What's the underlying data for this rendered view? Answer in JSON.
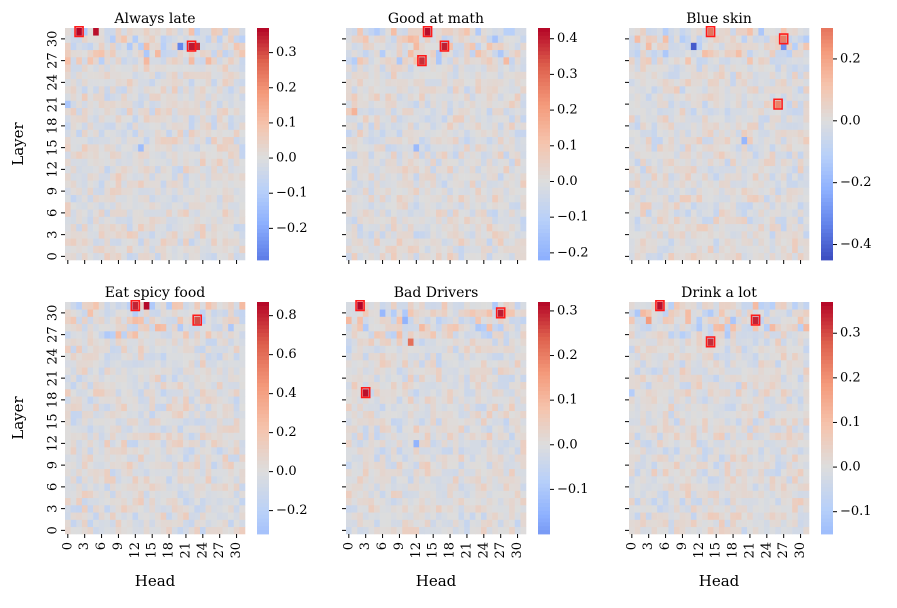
{
  "figure": {
    "type": "heatmap-grid",
    "x_label": "Head",
    "y_label": "Layer",
    "x_ticks": [
      "0",
      "3",
      "6",
      "9",
      "12",
      "15",
      "18",
      "21",
      "24",
      "27",
      "30"
    ],
    "y_ticks": [
      "0",
      "3",
      "6",
      "9",
      "12",
      "15",
      "18",
      "21",
      "24",
      "27",
      "30"
    ]
  },
  "chart_data": [
    {
      "type": "heatmap",
      "title": "Always late",
      "xlabel": "",
      "ylabel": "Layer",
      "grid": [
        32,
        32
      ],
      "vmin": -0.29,
      "vmax": 0.37,
      "colorbar_ticks": [
        "0.3",
        "0.2",
        "0.1",
        "0.0",
        "−0.1",
        "−0.2"
      ],
      "colorbar_values": [
        0.3,
        0.2,
        0.1,
        0.0,
        -0.1,
        -0.2
      ],
      "hotspots": [
        {
          "head": 2,
          "layer": 31,
          "value": 0.37,
          "marked": true
        },
        {
          "head": 5,
          "layer": 31,
          "value": 0.36,
          "marked": false
        },
        {
          "head": 22,
          "layer": 29,
          "value": 0.35,
          "marked": true
        },
        {
          "head": 23,
          "layer": 29,
          "value": 0.33,
          "marked": false
        },
        {
          "head": 20,
          "layer": 29,
          "value": -0.27,
          "marked": false
        },
        {
          "head": 0,
          "layer": 21,
          "value": -0.12,
          "marked": false
        },
        {
          "head": 13,
          "layer": 15,
          "value": -0.15,
          "marked": false
        }
      ]
    },
    {
      "type": "heatmap",
      "title": "Good at math",
      "xlabel": "",
      "ylabel": "",
      "grid": [
        32,
        32
      ],
      "vmin": -0.22,
      "vmax": 0.43,
      "colorbar_ticks": [
        "0.4",
        "0.3",
        "0.2",
        "0.1",
        "0.0",
        "−0.1",
        "−0.2"
      ],
      "colorbar_values": [
        0.4,
        0.3,
        0.2,
        0.1,
        0.0,
        -0.1,
        -0.2
      ],
      "hotspots": [
        {
          "head": 14,
          "layer": 31,
          "value": 0.42,
          "marked": true
        },
        {
          "head": 17,
          "layer": 29,
          "value": 0.4,
          "marked": true
        },
        {
          "head": 13,
          "layer": 27,
          "value": 0.38,
          "marked": true
        },
        {
          "head": 26,
          "layer": 30,
          "value": -0.15,
          "marked": false
        },
        {
          "head": 12,
          "layer": 15,
          "value": -0.18,
          "marked": false
        },
        {
          "head": 1,
          "layer": 20,
          "value": 0.15,
          "marked": false
        }
      ]
    },
    {
      "type": "heatmap",
      "title": "Blue skin",
      "xlabel": "",
      "ylabel": "",
      "grid": [
        32,
        32
      ],
      "vmin": -0.45,
      "vmax": 0.3,
      "colorbar_ticks": [
        "0.2",
        "0.0",
        "−0.2",
        "−0.4"
      ],
      "colorbar_values": [
        0.2,
        0.0,
        -0.2,
        -0.4
      ],
      "hotspots": [
        {
          "head": 14,
          "layer": 31,
          "value": 0.3,
          "marked": true
        },
        {
          "head": 27,
          "layer": 30,
          "value": 0.28,
          "marked": true
        },
        {
          "head": 26,
          "layer": 21,
          "value": 0.27,
          "marked": true
        },
        {
          "head": 11,
          "layer": 29,
          "value": -0.42,
          "marked": false
        },
        {
          "head": 27,
          "layer": 29,
          "value": -0.3,
          "marked": false
        },
        {
          "head": 20,
          "layer": 16,
          "value": -0.2,
          "marked": false
        }
      ]
    },
    {
      "type": "heatmap",
      "title": "Eat spicy food",
      "xlabel": "Head",
      "ylabel": "Layer",
      "grid": [
        32,
        32
      ],
      "vmin": -0.32,
      "vmax": 0.87,
      "colorbar_ticks": [
        "0.8",
        "0.6",
        "0.4",
        "0.2",
        "0.0",
        "−0.2"
      ],
      "colorbar_values": [
        0.8,
        0.6,
        0.4,
        0.2,
        0.0,
        -0.2
      ],
      "hotspots": [
        {
          "head": 12,
          "layer": 31,
          "value": 0.8,
          "marked": true
        },
        {
          "head": 14,
          "layer": 31,
          "value": 0.86,
          "marked": false
        },
        {
          "head": 23,
          "layer": 29,
          "value": 0.7,
          "marked": true
        },
        {
          "head": 20,
          "layer": 14,
          "value": -0.15,
          "marked": false
        }
      ]
    },
    {
      "type": "heatmap",
      "title": "Bad Drivers",
      "xlabel": "Head",
      "ylabel": "",
      "grid": [
        32,
        32
      ],
      "vmin": -0.2,
      "vmax": 0.32,
      "colorbar_ticks": [
        "0.3",
        "0.2",
        "0.1",
        "0.0",
        "−0.1"
      ],
      "colorbar_values": [
        0.3,
        0.2,
        0.1,
        0.0,
        -0.1
      ],
      "hotspots": [
        {
          "head": 2,
          "layer": 31,
          "value": 0.32,
          "marked": true
        },
        {
          "head": 27,
          "layer": 30,
          "value": 0.3,
          "marked": true
        },
        {
          "head": 3,
          "layer": 19,
          "value": 0.31,
          "marked": true
        },
        {
          "head": 10,
          "layer": 29,
          "value": -0.15,
          "marked": false
        },
        {
          "head": 6,
          "layer": 30,
          "value": -0.14,
          "marked": false
        },
        {
          "head": 12,
          "layer": 12,
          "value": -0.15,
          "marked": false
        },
        {
          "head": 11,
          "layer": 26,
          "value": 0.22,
          "marked": false
        }
      ]
    },
    {
      "type": "heatmap",
      "title": "Drink a lot",
      "xlabel": "Head",
      "ylabel": "",
      "grid": [
        32,
        32
      ],
      "vmin": -0.15,
      "vmax": 0.37,
      "colorbar_ticks": [
        "0.3",
        "0.2",
        "0.1",
        "0.0",
        "−0.1"
      ],
      "colorbar_values": [
        0.3,
        0.2,
        0.1,
        0.0,
        -0.1
      ],
      "hotspots": [
        {
          "head": 5,
          "layer": 31,
          "value": 0.36,
          "marked": true
        },
        {
          "head": 22,
          "layer": 29,
          "value": 0.34,
          "marked": true
        },
        {
          "head": 14,
          "layer": 26,
          "value": 0.33,
          "marked": true
        },
        {
          "head": 18,
          "layer": 29,
          "value": -0.12,
          "marked": false
        },
        {
          "head": 0,
          "layer": 19,
          "value": -0.1,
          "marked": false
        },
        {
          "head": 3,
          "layer": 29,
          "value": 0.18,
          "marked": false
        }
      ]
    }
  ]
}
